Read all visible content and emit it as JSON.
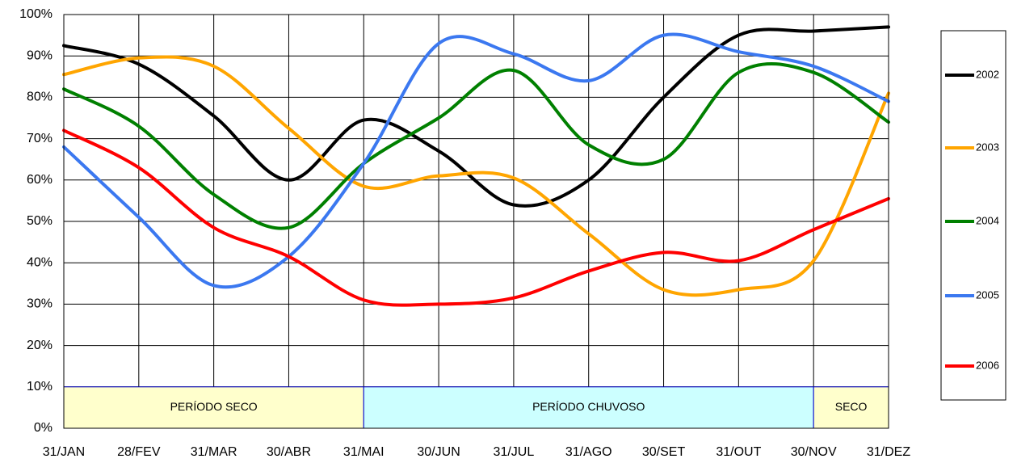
{
  "chart_data": {
    "type": "line",
    "categories": [
      "31/JAN",
      "28/FEV",
      "31/MAR",
      "30/ABR",
      "31/MAI",
      "30/JUN",
      "31/JUL",
      "31/AGO",
      "30/SET",
      "31/OUT",
      "30/NOV",
      "31/DEZ"
    ],
    "series": [
      {
        "name": "2002",
        "color": "#000000",
        "values": [
          92.5,
          88,
          75.5,
          60,
          74.5,
          67,
          54,
          60,
          80,
          95,
          96,
          97
        ]
      },
      {
        "name": "2003",
        "color": "#ffa500",
        "values": [
          85.5,
          89.5,
          87.5,
          72.5,
          58.5,
          61,
          60.5,
          47,
          33.5,
          33.5,
          40.5,
          81
        ]
      },
      {
        "name": "2004",
        "color": "#008000",
        "values": [
          82,
          73,
          56.5,
          48.5,
          64,
          75,
          86.5,
          68.5,
          65,
          86,
          86,
          74
        ]
      },
      {
        "name": "2005",
        "color": "#3b78f0",
        "values": [
          68,
          51,
          34.5,
          41.5,
          64,
          93,
          90.5,
          84,
          95,
          91,
          87.5,
          79
        ]
      },
      {
        "name": "2006",
        "color": "#ff0000",
        "values": [
          72,
          63,
          48.5,
          41.5,
          31,
          30,
          31.5,
          38,
          42.5,
          40.5,
          48,
          55.5
        ]
      }
    ],
    "ylim": [
      0,
      100
    ],
    "yticks": [
      {
        "value": 0,
        "label": "0%"
      },
      {
        "value": 10,
        "label": "10%"
      },
      {
        "value": 20,
        "label": "20%"
      },
      {
        "value": 30,
        "label": "30%"
      },
      {
        "value": 40,
        "label": "40%"
      },
      {
        "value": 50,
        "label": "50%"
      },
      {
        "value": 60,
        "label": "60%"
      },
      {
        "value": 70,
        "label": "70%"
      },
      {
        "value": 80,
        "label": "80%"
      },
      {
        "value": 90,
        "label": "90%"
      },
      {
        "value": 100,
        "label": "100%"
      }
    ],
    "grid": true,
    "legend": "right",
    "periods": [
      "PERÍODO SECO",
      "PERÍODO CHUVOSO",
      "SECO"
    ]
  }
}
